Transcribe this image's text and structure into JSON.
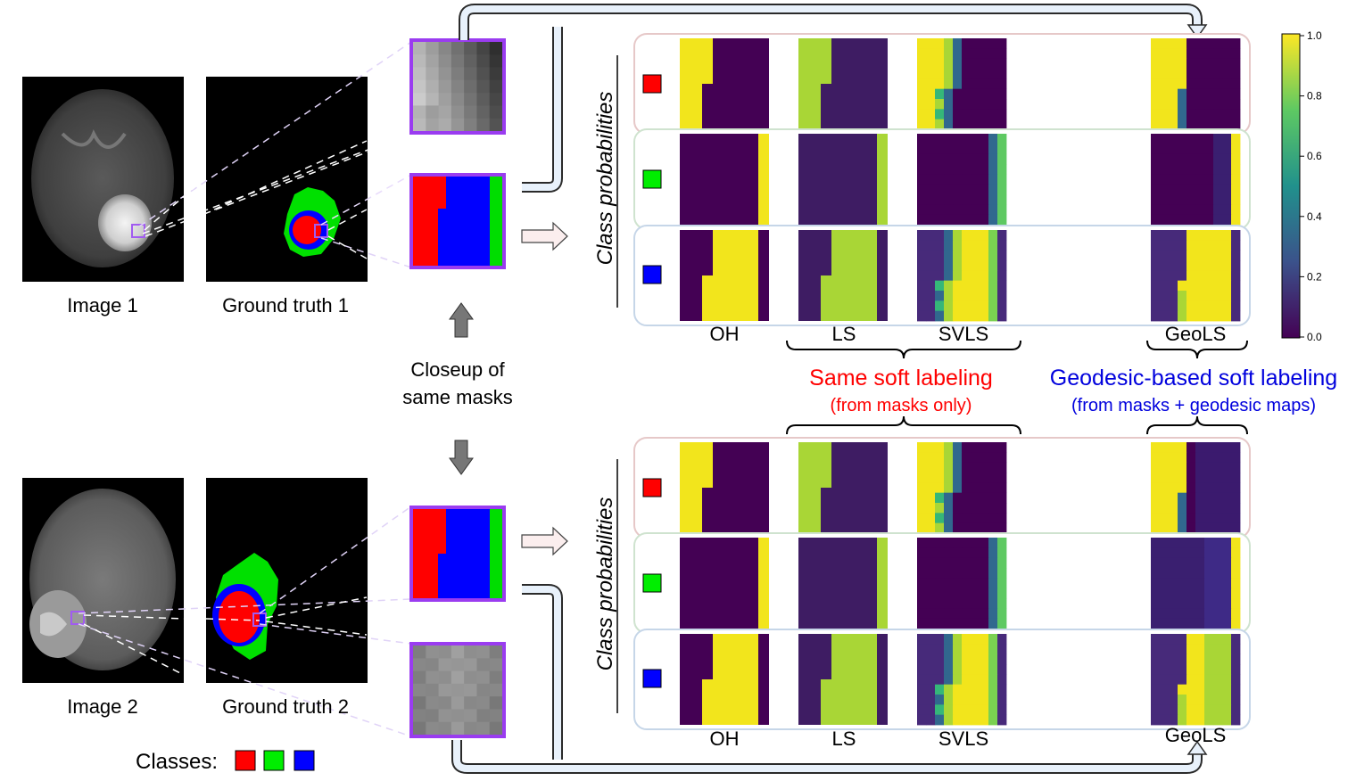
{
  "panels": {
    "image1_label": "Image 1",
    "gt1_label": "Ground truth 1",
    "image2_label": "Image 2",
    "gt2_label": "Ground truth 2"
  },
  "closeup_text": [
    "Closeup of",
    "same masks"
  ],
  "classes_label": "Classes:",
  "class_colors": [
    "#ff0000",
    "#00ee00",
    "#0000ff"
  ],
  "y_axis_label": "Class probabilities",
  "methods_top": [
    "OH",
    "LS",
    "SVLS",
    "GeoLS"
  ],
  "methods_bottom": [
    "OH",
    "LS",
    "SVLS",
    "GeoLS"
  ],
  "same_soft": {
    "title": "Same soft labeling",
    "sub": "(from masks only)",
    "color": "#ff0000"
  },
  "geo_soft": {
    "title": "Geodesic-based soft labeling",
    "sub": "(from masks + geodesic maps)",
    "color": "#0000dd"
  },
  "colorbar": {
    "ticks": [
      "1.0",
      "0.8",
      "0.6",
      "0.4",
      "0.2",
      "0.0"
    ],
    "colormap": "viridis"
  },
  "row_border_colors": [
    "#e6c8c8",
    "#cfe3cf",
    "#c6d6e8"
  ]
}
